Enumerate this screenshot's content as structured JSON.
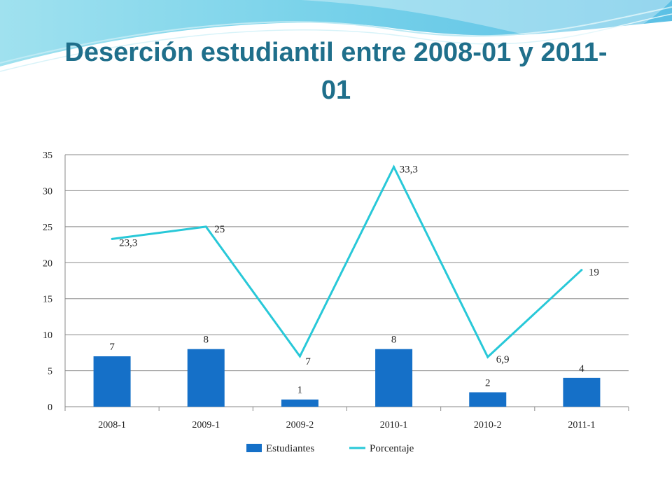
{
  "title": "Deserción estudiantil entre 2008-01 y 2011-01",
  "colors": {
    "bar": "#1570c8",
    "line": "#28c8d8",
    "grid": "#8a8a8a",
    "title": "#1f6f8b"
  },
  "chart_data": {
    "type": "bar",
    "title": "Deserción estudiantil entre 2008-01 y 2011-01",
    "categories": [
      "2008-1",
      "2009-1",
      "2009-2",
      "2010-1",
      "2010-2",
      "2011-1"
    ],
    "ylim": [
      0,
      35
    ],
    "yticks": [
      0,
      5,
      10,
      15,
      20,
      25,
      30,
      35
    ],
    "grid": true,
    "legend_position": "bottom",
    "series": [
      {
        "name": "Estudiantes",
        "type": "bar",
        "values": [
          7,
          8,
          1,
          8,
          2,
          4
        ],
        "labels": [
          "7",
          "8",
          "1",
          "8",
          "2",
          "4"
        ]
      },
      {
        "name": "Porcentaje",
        "type": "line",
        "values": [
          23.3,
          25,
          7,
          33.3,
          6.9,
          19
        ],
        "labels": [
          "23,3",
          "25",
          "7",
          "33,3",
          "6,9",
          "19"
        ]
      }
    ]
  }
}
